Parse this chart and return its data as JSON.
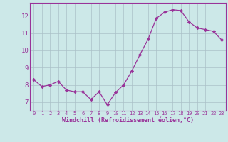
{
  "x": [
    0,
    1,
    2,
    3,
    4,
    5,
    6,
    7,
    8,
    9,
    10,
    11,
    12,
    13,
    14,
    15,
    16,
    17,
    18,
    19,
    20,
    21,
    22,
    23
  ],
  "y": [
    8.3,
    7.9,
    8.0,
    8.2,
    7.7,
    7.6,
    7.6,
    7.15,
    7.6,
    6.85,
    7.55,
    8.0,
    8.8,
    9.75,
    10.65,
    11.85,
    12.2,
    12.35,
    12.3,
    11.65,
    11.3,
    11.2,
    11.1,
    10.6
  ],
  "line_color": "#993399",
  "marker": "D",
  "marker_size": 2.2,
  "bg_color": "#cce8e8",
  "grid_color": "#aac0c8",
  "xlabel": "Windchill (Refroidissement éolien,°C)",
  "xlabel_color": "#993399",
  "tick_color": "#993399",
  "ylim": [
    6.5,
    12.75
  ],
  "xlim": [
    -0.5,
    23.5
  ],
  "yticks": [
    7,
    8,
    9,
    10,
    11,
    12
  ],
  "xticks": [
    0,
    1,
    2,
    3,
    4,
    5,
    6,
    7,
    8,
    9,
    10,
    11,
    12,
    13,
    14,
    15,
    16,
    17,
    18,
    19,
    20,
    21,
    22,
    23
  ]
}
